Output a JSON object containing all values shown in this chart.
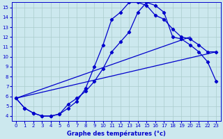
{
  "xlabel": "Graphe des températures (°c)",
  "bg_color": "#cce8ee",
  "line_color": "#0000cc",
  "grid_color": "#aacccc",
  "xlim": [
    -0.5,
    23.5
  ],
  "ylim": [
    3.5,
    15.5
  ],
  "xticks": [
    0,
    1,
    2,
    3,
    4,
    5,
    6,
    7,
    8,
    9,
    10,
    11,
    12,
    13,
    14,
    15,
    16,
    17,
    18,
    19,
    20,
    21,
    22,
    23
  ],
  "yticks": [
    4,
    5,
    6,
    7,
    8,
    9,
    10,
    11,
    12,
    13,
    14,
    15
  ],
  "line1_x": [
    0,
    1,
    2,
    3,
    4,
    5,
    6,
    7,
    8,
    9,
    10,
    11,
    12,
    13,
    14,
    15,
    16,
    17,
    18,
    19,
    20,
    21,
    22,
    23
  ],
  "line1_y": [
    5.8,
    4.8,
    4.3,
    4.0,
    4.0,
    4.2,
    4.8,
    5.5,
    6.8,
    9.0,
    11.2,
    13.8,
    14.5,
    15.5,
    15.5,
    15.2,
    14.2,
    13.8,
    12.8,
    12.0,
    11.8,
    11.2,
    10.5,
    10.5
  ],
  "line2_x": [
    0,
    1,
    2,
    3,
    4,
    5,
    6,
    7,
    8,
    9,
    10,
    11,
    12,
    13,
    14,
    15,
    16,
    17,
    18,
    19,
    20,
    21,
    22,
    23
  ],
  "line2_y": [
    5.8,
    4.8,
    4.3,
    4.0,
    4.0,
    4.2,
    5.2,
    5.8,
    6.5,
    7.5,
    8.8,
    10.5,
    11.5,
    12.5,
    14.5,
    15.5,
    15.2,
    14.5,
    12.0,
    11.8,
    11.2,
    10.5,
    9.5,
    7.5
  ],
  "line3_x": [
    0,
    23
  ],
  "line3_y": [
    5.8,
    10.5
  ],
  "line4_x": [
    0,
    20
  ],
  "line4_y": [
    5.8,
    12.0
  ]
}
